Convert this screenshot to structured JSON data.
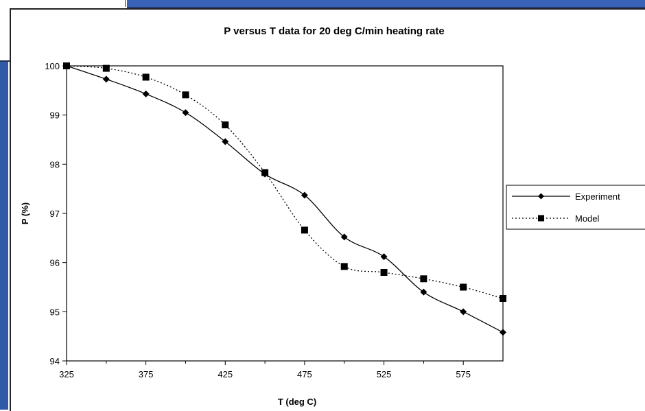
{
  "colors": {
    "frame_blue": "#2e5aa8",
    "series_color": "#000000"
  },
  "chart_data": {
    "type": "line",
    "title": "P versus T data for 20 deg C/min heating rate",
    "xlabel": "T (deg C)",
    "ylabel": "P (%)",
    "xlim": [
      325,
      600
    ],
    "ylim": [
      94,
      100
    ],
    "xticks": [
      325,
      375,
      425,
      475,
      525,
      575
    ],
    "yticks": [
      94,
      95,
      96,
      97,
      98,
      99,
      100
    ],
    "grid": false,
    "legend_position": "right",
    "series": [
      {
        "name": "Experiment",
        "line_style": "solid",
        "marker": "diamond",
        "x": [
          325,
          350,
          375,
          400,
          425,
          450,
          475,
          500,
          525,
          550,
          575,
          600
        ],
        "y": [
          100.0,
          99.73,
          99.43,
          99.05,
          98.46,
          97.8,
          97.37,
          96.52,
          96.12,
          95.4,
          95.0,
          94.58
        ]
      },
      {
        "name": "Model",
        "line_style": "dotted",
        "marker": "square",
        "x": [
          325,
          350,
          375,
          400,
          425,
          450,
          475,
          500,
          525,
          550,
          575,
          600
        ],
        "y": [
          100.0,
          99.95,
          99.77,
          99.41,
          98.8,
          97.83,
          96.66,
          95.92,
          95.8,
          95.67,
          95.5,
          95.27
        ]
      }
    ]
  }
}
